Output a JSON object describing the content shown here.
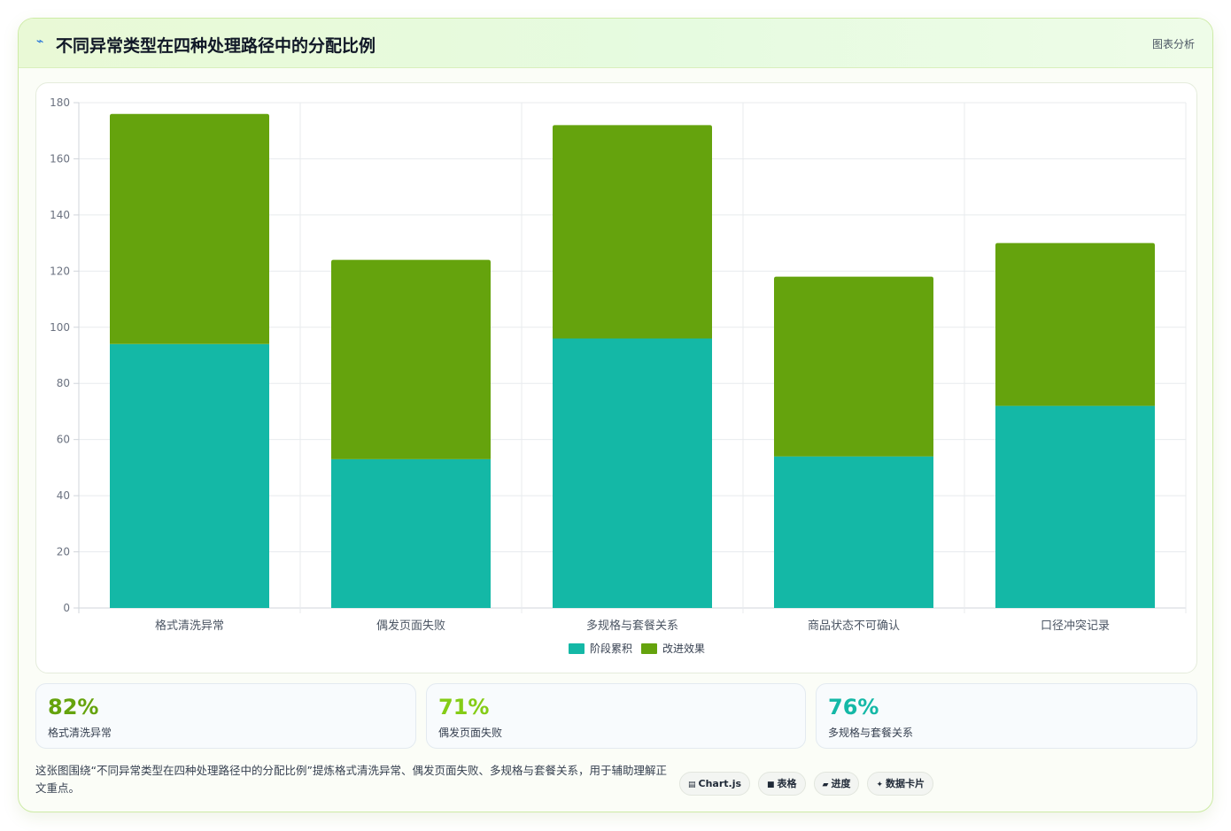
{
  "header": {
    "icon": "line-chart-icon",
    "title": "不同异常类型在四种处理路径中的分配比例",
    "tag": "图表分析"
  },
  "chart_data": {
    "type": "bar",
    "stacked": true,
    "categories": [
      "格式清洗异常",
      "偶发页面失败",
      "多规格与套餐关系",
      "商品状态不可确认",
      "口径冲突记录"
    ],
    "series": [
      {
        "name": "阶段累积",
        "color": "#14b8a6",
        "values": [
          94,
          53,
          96,
          54,
          72
        ]
      },
      {
        "name": "改进效果",
        "color": "#65a30d",
        "values": [
          82,
          71,
          76,
          64,
          58
        ]
      }
    ],
    "ylim": [
      0,
      180
    ],
    "yticks": [
      0,
      20,
      40,
      60,
      80,
      100,
      120,
      140,
      160,
      180
    ],
    "grid": true,
    "legend_position": "bottom"
  },
  "stats": [
    {
      "value": "82%",
      "label": "格式清洗异常",
      "color": "#65a30d"
    },
    {
      "value": "71%",
      "label": "偶发页面失败",
      "color": "#84cc16"
    },
    {
      "value": "76%",
      "label": "多规格与套餐关系",
      "color": "#14b8a6"
    }
  ],
  "footer": {
    "text": "这张图围绕“不同异常类型在四种处理路径中的分配比例”提炼格式清洗异常、偶发页面失败、多规格与套餐关系，用于辅助理解正文重点。",
    "chips": [
      {
        "icon": "window-icon",
        "glyph": "▤",
        "label": "Chart.js"
      },
      {
        "icon": "table-icon",
        "glyph": "■",
        "label": "表格"
      },
      {
        "icon": "progress-icon",
        "glyph": "▰",
        "label": "进度"
      },
      {
        "icon": "sparkle-icon",
        "glyph": "✦",
        "label": "数据卡片"
      }
    ]
  }
}
